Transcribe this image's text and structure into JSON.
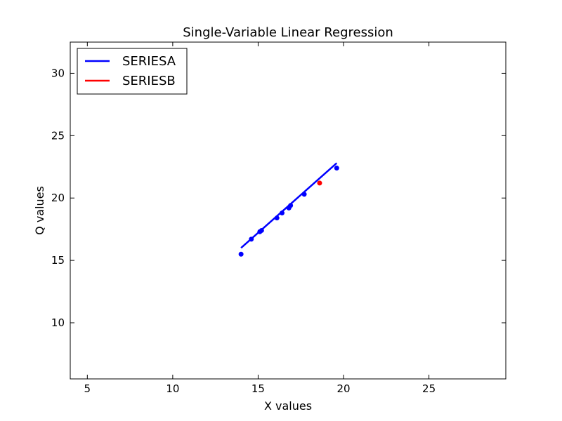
{
  "chart_data": {
    "type": "scatter",
    "title": "Single-Variable Linear Regression",
    "xlabel": "X values",
    "ylabel": "Q values",
    "xlim": [
      4,
      29.5
    ],
    "ylim": [
      5.5,
      32.5
    ],
    "xticks": [
      5,
      10,
      15,
      20,
      25
    ],
    "yticks": [
      10,
      15,
      20,
      25,
      30
    ],
    "grid": false,
    "legend_position": "top-left",
    "series": [
      {
        "name": "SERIESA",
        "color": "#0000ff",
        "points": [
          {
            "x": 14.0,
            "y": 15.5
          },
          {
            "x": 14.6,
            "y": 16.7
          },
          {
            "x": 15.1,
            "y": 17.3
          },
          {
            "x": 15.2,
            "y": 17.4
          },
          {
            "x": 16.1,
            "y": 18.4
          },
          {
            "x": 16.4,
            "y": 18.8
          },
          {
            "x": 16.8,
            "y": 19.2
          },
          {
            "x": 16.9,
            "y": 19.4
          },
          {
            "x": 17.7,
            "y": 20.3
          },
          {
            "x": 19.6,
            "y": 22.4
          }
        ],
        "fit_line": [
          {
            "x": 14.0,
            "y": 16.0
          },
          {
            "x": 19.6,
            "y": 22.8
          }
        ]
      },
      {
        "name": "SERIESB",
        "color": "#ff0000",
        "points": [
          {
            "x": 18.6,
            "y": 21.2
          }
        ]
      }
    ]
  }
}
